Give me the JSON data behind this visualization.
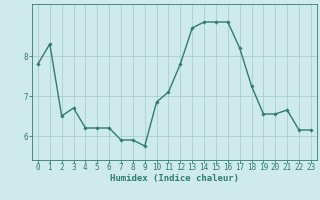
{
  "x": [
    0,
    1,
    2,
    3,
    4,
    5,
    6,
    7,
    8,
    9,
    10,
    11,
    12,
    13,
    14,
    15,
    16,
    17,
    18,
    19,
    20,
    21,
    22,
    23
  ],
  "y": [
    7.8,
    8.3,
    6.5,
    6.7,
    6.2,
    6.2,
    6.2,
    5.9,
    5.9,
    5.75,
    6.85,
    7.1,
    7.8,
    8.7,
    8.85,
    8.85,
    8.85,
    8.2,
    7.25,
    6.55,
    6.55,
    6.65,
    6.15,
    6.15
  ],
  "line_color": "#2e7d6e",
  "marker": "D",
  "markersize": 1.8,
  "linewidth": 1.0,
  "bg_color": "#ceeaea",
  "grid_color": "#aacece",
  "xlabel": "Humidex (Indice chaleur)",
  "xlabel_fontsize": 6.5,
  "tick_fontsize": 5.5,
  "yticks": [
    6,
    7,
    8
  ],
  "ylim": [
    5.4,
    9.3
  ],
  "xlim": [
    -0.5,
    23.5
  ]
}
